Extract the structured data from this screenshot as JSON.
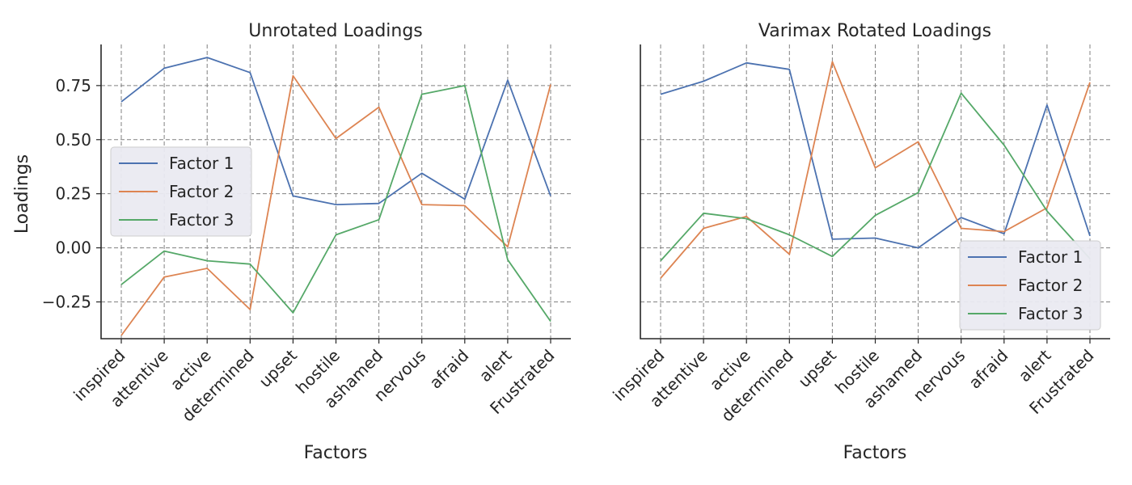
{
  "chart_data": [
    {
      "type": "line",
      "title": "Unrotated Loadings",
      "xlabel": "Factors",
      "ylabel": "Loadings",
      "categories": [
        "inspired",
        "attentive",
        "active",
        "determined",
        "upset",
        "hostile",
        "ashamed",
        "nervous",
        "afraid",
        "alert",
        "Frustrated"
      ],
      "ylim": [
        -0.42,
        0.94
      ],
      "yticks": [
        -0.25,
        0.0,
        0.25,
        0.5,
        0.75
      ],
      "ytick_labels": [
        "−0.25",
        "0.00",
        "0.25",
        "0.50",
        "0.75"
      ],
      "grid": true,
      "legend_position": "center-left",
      "series": [
        {
          "name": "Factor 1",
          "color": "#4c72b0",
          "values": [
            0.675,
            0.83,
            0.88,
            0.81,
            0.24,
            0.2,
            0.205,
            0.345,
            0.225,
            0.775,
            0.24
          ]
        },
        {
          "name": "Factor 2",
          "color": "#dd8452",
          "values": [
            -0.405,
            -0.135,
            -0.095,
            -0.285,
            0.795,
            0.505,
            0.65,
            0.2,
            0.195,
            0.005,
            0.755
          ]
        },
        {
          "name": "Factor 3",
          "color": "#55a868",
          "values": [
            -0.17,
            -0.015,
            -0.06,
            -0.075,
            -0.3,
            0.06,
            0.13,
            0.71,
            0.75,
            -0.055,
            -0.34
          ]
        }
      ]
    },
    {
      "type": "line",
      "title": "Varimax Rotated Loadings",
      "xlabel": "Factors",
      "ylabel": "",
      "categories": [
        "inspired",
        "attentive",
        "active",
        "determined",
        "upset",
        "hostile",
        "ashamed",
        "nervous",
        "afraid",
        "alert",
        "Frustrated"
      ],
      "ylim": [
        -0.42,
        0.94
      ],
      "grid": true,
      "legend_position": "lower-right",
      "series": [
        {
          "name": "Factor 1",
          "color": "#4c72b0",
          "values": [
            0.71,
            0.77,
            0.855,
            0.825,
            0.04,
            0.045,
            0.0,
            0.14,
            0.065,
            0.66,
            0.055
          ]
        },
        {
          "name": "Factor 2",
          "color": "#dd8452",
          "values": [
            -0.14,
            0.09,
            0.145,
            -0.03,
            0.86,
            0.37,
            0.49,
            0.09,
            0.075,
            0.185,
            0.765
          ]
        },
        {
          "name": "Factor 3",
          "color": "#55a868",
          "values": [
            -0.06,
            0.16,
            0.135,
            0.06,
            -0.04,
            0.15,
            0.255,
            0.715,
            0.475,
            0.17,
            -0.05
          ]
        }
      ]
    }
  ]
}
